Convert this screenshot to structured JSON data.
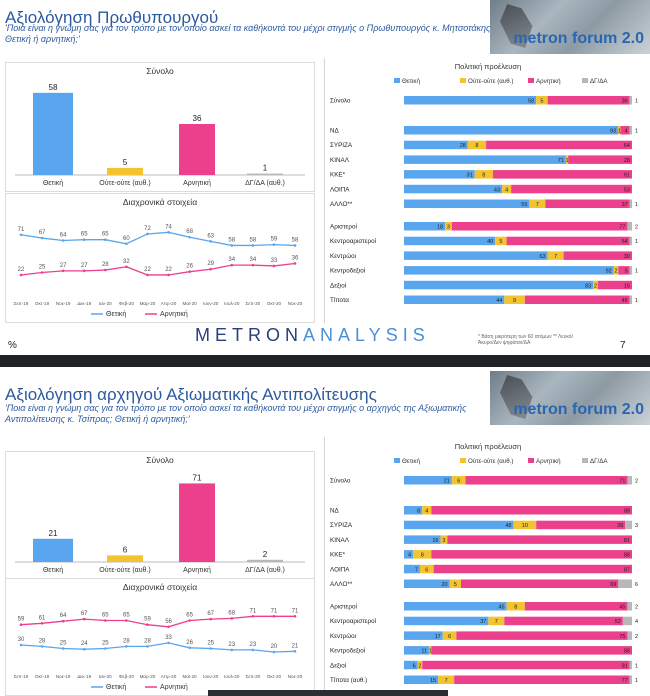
{
  "slides": [
    {
      "title": "Αξιολόγηση Πρωθυπουργού",
      "question": "'Ποια είναι η γνώμη σας για τον τρόπο με τον οποίο ασκεί τα καθήκοντά του μέχρι στιγμής ο Πρωθυπουργός κ. Μητσοτάκης; Θετική ή αρνητική;'",
      "brand": "metron forum 2.0",
      "footer_logo_a": "METRON",
      "footer_logo_b": "ANALYSIS",
      "footnote": "* Βάση μικρότερη των 60 ατόμων  ** Λευκό/Άκυρο/Δεν ψηφίσαν/ΔΑ",
      "percent_sign": "%",
      "page_number": "7"
    },
    {
      "title": "Αξιολόγηση αρχηγού Αξιωματικής Αντιπολίτευσης",
      "question": "'Ποια είναι η γνώμη σας για τον τρόπο με τον οποίο ασκεί τα καθήκοντά του μέχρι στιγμής ο αρχηγός της Αξιωματικής Αντιπολίτευσης κ. Τσίπρας; Θετική ή αρνητική;'",
      "brand": "metron forum 2.0"
    }
  ],
  "colors": {
    "positive": "#5aa6ee",
    "neutral": "#f4c430",
    "negative": "#ec3f8c",
    "dk": "#b8b8b8",
    "title": "#2c5aa0"
  },
  "chart_data": [
    {
      "id": "pm_total",
      "type": "bar",
      "title": "Σύνολο",
      "categories": [
        "Θετική",
        "Ούτε-ούτε (αυθ.)",
        "Αρνητική",
        "ΔΓ/ΔΑ (αυθ.)"
      ],
      "values": [
        58,
        5,
        36,
        1
      ],
      "ylim": [
        0,
        60
      ]
    },
    {
      "id": "pm_trend",
      "type": "line",
      "title": "Διαχρονικά στοιχεία",
      "x": [
        "Σεπ-19",
        "Οκτ-19",
        "Νοε-19",
        "Δεκ-19",
        "Ιαν-20",
        "Φεβ-20",
        "Μαρ-20",
        "Απρ-20",
        "Μαϊ-20",
        "Ιουν-20",
        "Ιουλ-20",
        "Σεπ-20",
        "Οκτ-20",
        "Νοε-20"
      ],
      "series": [
        {
          "name": "Θετική",
          "values": [
            71,
            67,
            64,
            65,
            65,
            60,
            72,
            74,
            68,
            63,
            58,
            58,
            59,
            58
          ]
        },
        {
          "name": "Αρνητική",
          "values": [
            22,
            25,
            27,
            27,
            28,
            32,
            22,
            22,
            26,
            29,
            34,
            34,
            33,
            36
          ]
        }
      ],
      "ylim": [
        0,
        100
      ]
    },
    {
      "id": "pm_party",
      "type": "bar",
      "stacked": true,
      "orientation": "horizontal",
      "title": "Πολιτική προέλευση",
      "legend": [
        "Θετική",
        "Ούτε-ούτε (αυθ.)",
        "Αρνητική",
        "ΔΓ/ΔΑ"
      ],
      "groups": [
        [
          {
            "label": "Σύνολο",
            "values": [
              58,
              5,
              36,
              1
            ]
          }
        ],
        [
          {
            "label": "ΝΔ",
            "values": [
              93,
              1,
              4,
              1
            ]
          },
          {
            "label": "ΣΥΡΙΖΑ",
            "values": [
              28,
              8,
              64,
              0
            ]
          },
          {
            "label": "ΚΙΝΑΛ",
            "values": [
              71,
              1,
              28,
              0
            ]
          },
          {
            "label": "ΚΚΕ*",
            "values": [
              31,
              8,
              61,
              0
            ]
          },
          {
            "label": "ΛΟΙΠΑ",
            "values": [
              43,
              4,
              53,
              0
            ]
          },
          {
            "label": "ΑΛΛΟ**",
            "values": [
              55,
              7,
              37,
              1
            ]
          }
        ],
        [
          {
            "label": "Αριστεροί",
            "values": [
              18,
              3,
              77,
              2
            ]
          },
          {
            "label": "Κεντροαριστεροί",
            "values": [
              40,
              5,
              54,
              1
            ]
          },
          {
            "label": "Κεντρώοι",
            "values": [
              63,
              7,
              30,
              0
            ]
          },
          {
            "label": "Κεντροδεξιοί",
            "values": [
              92,
              2,
              5,
              1
            ]
          },
          {
            "label": "Δεξιοί",
            "values": [
              83,
              2,
              15,
              0
            ]
          },
          {
            "label": "Τίποτα",
            "values": [
              44,
              9,
              46,
              1
            ]
          }
        ]
      ]
    },
    {
      "id": "opp_total",
      "type": "bar",
      "title": "Σύνολο",
      "categories": [
        "Θετική",
        "Ούτε-ούτε (αυθ.)",
        "Αρνητική",
        "ΔΓ/ΔΑ (αυθ.)"
      ],
      "values": [
        21,
        6,
        71,
        2
      ],
      "ylim": [
        0,
        75
      ]
    },
    {
      "id": "opp_trend",
      "type": "line",
      "title": "Διαχρονικά στοιχεία",
      "x": [
        "Σεπ-19",
        "Οκτ-19",
        "Νοε-19",
        "Δεκ-19",
        "Ιαν-20",
        "Φεβ-20",
        "Μαρ-20",
        "Απρ-20",
        "Μαϊ-20",
        "Ιουν-20",
        "Ιουλ-20",
        "Σεπ-20",
        "Οκτ-20",
        "Νοε-20"
      ],
      "series": [
        {
          "name": "Θετική",
          "values": [
            30,
            28,
            25,
            24,
            25,
            28,
            28,
            33,
            26,
            25,
            23,
            23,
            20,
            21
          ]
        },
        {
          "name": "Αρνητική",
          "values": [
            59,
            61,
            64,
            67,
            65,
            65,
            59,
            56,
            65,
            67,
            68,
            71,
            71,
            71
          ]
        }
      ],
      "ylim": [
        0,
        100
      ]
    },
    {
      "id": "opp_party",
      "type": "bar",
      "stacked": true,
      "orientation": "horizontal",
      "title": "Πολιτική προέλευση",
      "legend": [
        "Θετική",
        "Ούτε-ούτε (αυθ.)",
        "Αρνητική",
        "ΔΓ/ΔΑ"
      ],
      "groups": [
        [
          {
            "label": "Σύνολο",
            "values": [
              21,
              6,
              71,
              2
            ]
          }
        ],
        [
          {
            "label": "ΝΔ",
            "values": [
              8,
              4,
              88,
              0
            ]
          },
          {
            "label": "ΣΥΡΙΖΑ",
            "values": [
              48,
              10,
              39,
              3
            ]
          },
          {
            "label": "ΚΙΝΑΛ",
            "values": [
              16,
              3,
              81,
              0
            ]
          },
          {
            "label": "ΚΚΕ*",
            "values": [
              4,
              8,
              88,
              0
            ]
          },
          {
            "label": "ΛΟΙΠΑ",
            "values": [
              7,
              6,
              87,
              0
            ]
          },
          {
            "label": "ΑΛΛΟ**",
            "values": [
              20,
              5,
              69,
              6
            ]
          }
        ],
        [
          {
            "label": "Αριστεροί",
            "values": [
              45,
              8,
              45,
              2
            ]
          },
          {
            "label": "Κεντροαριστεροί",
            "values": [
              37,
              7,
              52,
              4
            ]
          },
          {
            "label": "Κεντρώοι",
            "values": [
              17,
              6,
              75,
              2
            ]
          },
          {
            "label": "Κεντροδεξιοί",
            "values": [
              11,
              1,
              88,
              0
            ]
          },
          {
            "label": "Δεξιοί",
            "values": [
              6,
              2,
              91,
              1
            ]
          },
          {
            "label": "Τίποτα (αυθ.)",
            "values": [
              15,
              7,
              77,
              1
            ]
          }
        ]
      ]
    }
  ]
}
